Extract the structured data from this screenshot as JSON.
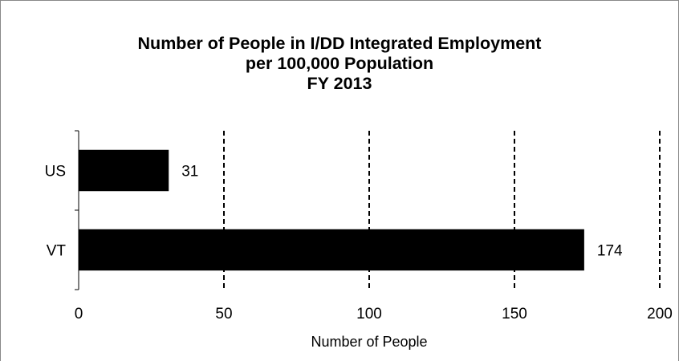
{
  "chart_data": {
    "type": "bar",
    "orientation": "horizontal",
    "title_lines": [
      "Number of People in I/DD Integrated Employment",
      "per 100,000 Population",
      "FY 2013"
    ],
    "categories": [
      "US",
      "VT"
    ],
    "values": [
      31,
      174
    ],
    "data_labels": [
      "31",
      "174"
    ],
    "xlabel": "Number of People",
    "ylabel": "",
    "xlim": [
      0,
      200
    ],
    "x_ticks": [
      0,
      50,
      100,
      150,
      200
    ],
    "x_tick_labels": [
      "0",
      "50",
      "100",
      "150",
      "200"
    ],
    "grid": "vertical dashed",
    "legend": "none",
    "bar_color": "#000000"
  }
}
